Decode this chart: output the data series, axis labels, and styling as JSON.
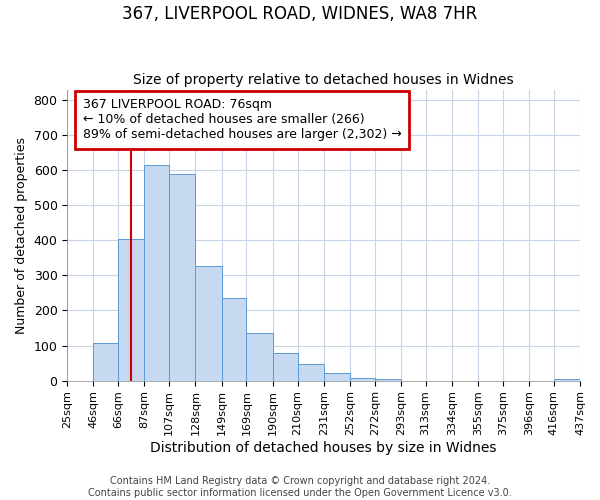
{
  "title": "367, LIVERPOOL ROAD, WIDNES, WA8 7HR",
  "subtitle": "Size of property relative to detached houses in Widnes",
  "xlabel": "Distribution of detached houses by size in Widnes",
  "ylabel": "Number of detached properties",
  "bin_edges": [
    25,
    46,
    66,
    87,
    107,
    128,
    149,
    169,
    190,
    210,
    231,
    252,
    272,
    293,
    313,
    334,
    355,
    375,
    396,
    416,
    437
  ],
  "bar_heights": [
    0,
    107,
    403,
    614,
    590,
    328,
    236,
    135,
    79,
    46,
    21,
    8,
    5,
    0,
    0,
    0,
    0,
    0,
    0,
    5
  ],
  "bar_color": "#c6d9f0",
  "bar_edge_color": "#5b9bd5",
  "vline_x": 76,
  "vline_color": "#cc0000",
  "ylim": [
    0,
    830
  ],
  "annotation_text": "367 LIVERPOOL ROAD: 76sqm\n← 10% of detached houses are smaller (266)\n89% of semi-detached houses are larger (2,302) →",
  "annotation_box_color": "#ffffff",
  "annotation_box_edge": "#cc0000",
  "footer_line1": "Contains HM Land Registry data © Crown copyright and database right 2024.",
  "footer_line2": "Contains public sector information licensed under the Open Government Licence v3.0.",
  "background_color": "#ffffff",
  "grid_color": "#c8d4e8",
  "title_fontsize": 12,
  "subtitle_fontsize": 10,
  "xlabel_fontsize": 10,
  "ylabel_fontsize": 9,
  "tick_fontsize": 8,
  "annotation_fontsize": 9,
  "footer_fontsize": 7
}
